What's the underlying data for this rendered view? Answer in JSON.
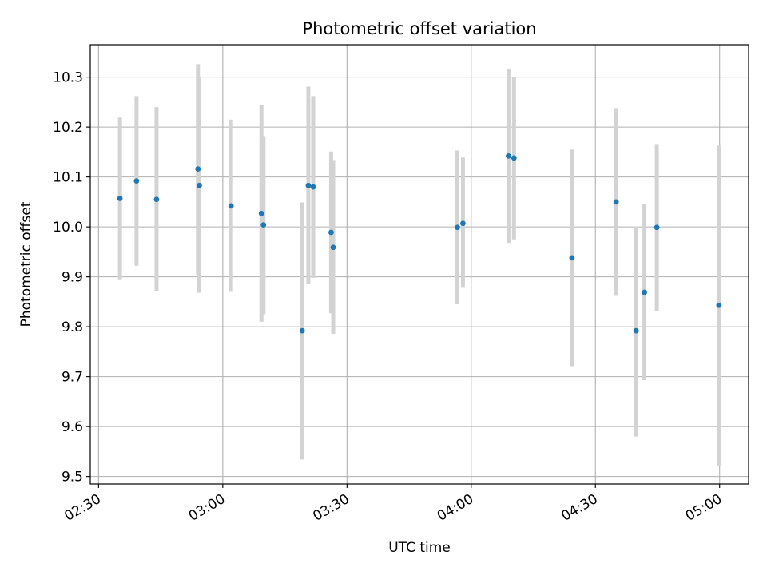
{
  "chart_data": {
    "type": "scatter",
    "title": "Photometric offset variation",
    "xlabel": "UTC time",
    "ylabel": "Photometric offset",
    "xlim": [
      "02:28",
      "05:07"
    ],
    "ylim": [
      9.485,
      10.365
    ],
    "x_ticks": [
      "02:30",
      "03:00",
      "03:30",
      "04:00",
      "04:30",
      "05:00"
    ],
    "y_ticks": [
      "9.5",
      "9.6",
      "9.7",
      "9.8",
      "9.9",
      "10.0",
      "10.1",
      "10.2",
      "10.3"
    ],
    "grid": true,
    "colors": {
      "marker": "#1f77b4",
      "errorbar": "#d3d3d3",
      "grid": "#b0b0b0",
      "frame": "#000000"
    },
    "points": [
      {
        "time": "02:35:10",
        "y": 10.057,
        "ylow": 9.895,
        "yhigh": 10.219
      },
      {
        "time": "02:39:10",
        "y": 10.092,
        "ylow": 9.922,
        "yhigh": 10.262
      },
      {
        "time": "02:44:00",
        "y": 10.055,
        "ylow": 9.872,
        "yhigh": 10.24
      },
      {
        "time": "02:54:00",
        "y": 10.116,
        "ylow": 9.905,
        "yhigh": 10.326
      },
      {
        "time": "02:54:20",
        "y": 10.083,
        "ylow": 9.868,
        "yhigh": 10.299
      },
      {
        "time": "03:02:00",
        "y": 10.042,
        "ylow": 9.87,
        "yhigh": 10.215
      },
      {
        "time": "03:09:20",
        "y": 10.027,
        "ylow": 9.81,
        "yhigh": 10.244
      },
      {
        "time": "03:09:50",
        "y": 10.004,
        "ylow": 9.825,
        "yhigh": 10.182
      },
      {
        "time": "03:19:10",
        "y": 9.792,
        "ylow": 9.534,
        "yhigh": 10.049
      },
      {
        "time": "03:20:40",
        "y": 10.083,
        "ylow": 9.886,
        "yhigh": 10.281
      },
      {
        "time": "03:21:50",
        "y": 10.08,
        "ylow": 9.898,
        "yhigh": 10.262
      },
      {
        "time": "03:26:10",
        "y": 9.989,
        "ylow": 9.827,
        "yhigh": 10.151
      },
      {
        "time": "03:26:40",
        "y": 9.959,
        "ylow": 9.786,
        "yhigh": 10.134
      },
      {
        "time": "03:56:40",
        "y": 9.999,
        "ylow": 9.845,
        "yhigh": 10.153
      },
      {
        "time": "03:58:00",
        "y": 10.007,
        "ylow": 9.878,
        "yhigh": 10.139
      },
      {
        "time": "04:09:00",
        "y": 10.142,
        "ylow": 9.968,
        "yhigh": 10.317
      },
      {
        "time": "04:10:20",
        "y": 10.138,
        "ylow": 9.975,
        "yhigh": 10.301
      },
      {
        "time": "04:24:20",
        "y": 9.938,
        "ylow": 9.721,
        "yhigh": 10.155
      },
      {
        "time": "04:35:00",
        "y": 10.05,
        "ylow": 9.862,
        "yhigh": 10.238
      },
      {
        "time": "04:39:50",
        "y": 9.792,
        "ylow": 9.58,
        "yhigh": 10.001
      },
      {
        "time": "04:41:50",
        "y": 9.869,
        "ylow": 9.693,
        "yhigh": 10.045
      },
      {
        "time": "04:44:50",
        "y": 9.999,
        "ylow": 9.831,
        "yhigh": 10.166
      },
      {
        "time": "04:59:50",
        "y": 9.843,
        "ylow": 9.521,
        "yhigh": 10.163
      }
    ]
  }
}
